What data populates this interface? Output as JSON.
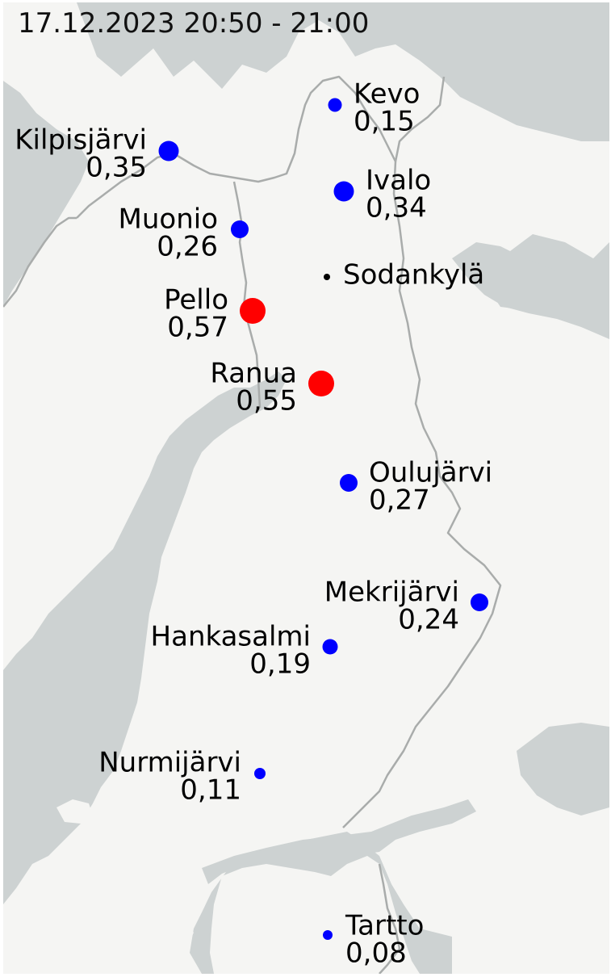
{
  "title": "17.12.2023 20:50 - 21:00",
  "colors": {
    "sea": "#cdd2d2",
    "land": "#f5f5f3",
    "border": "#a9acab",
    "low": "#0000ff",
    "high": "#ff0000",
    "neutral": "#000000"
  },
  "stations": [
    {
      "name": "Kevo",
      "value": "0,15",
      "level": "low"
    },
    {
      "name": "Kilpisjärvi",
      "value": "0,35",
      "level": "low"
    },
    {
      "name": "Ivalo",
      "value": "0,34",
      "level": "low"
    },
    {
      "name": "Muonio",
      "value": "0,26",
      "level": "low"
    },
    {
      "name": "Sodankylä",
      "value": "",
      "level": "neutral"
    },
    {
      "name": "Pello",
      "value": "0,57",
      "level": "high"
    },
    {
      "name": "Ranua",
      "value": "0,55",
      "level": "high"
    },
    {
      "name": "Oulujärvi",
      "value": "0,27",
      "level": "low"
    },
    {
      "name": "Mekrijärvi",
      "value": "0,24",
      "level": "low"
    },
    {
      "name": "Hankasalmi",
      "value": "0,19",
      "level": "low"
    },
    {
      "name": "Nurmijärvi",
      "value": "0,11",
      "level": "low"
    },
    {
      "name": "Tartto",
      "value": "0,08",
      "level": "low"
    }
  ]
}
